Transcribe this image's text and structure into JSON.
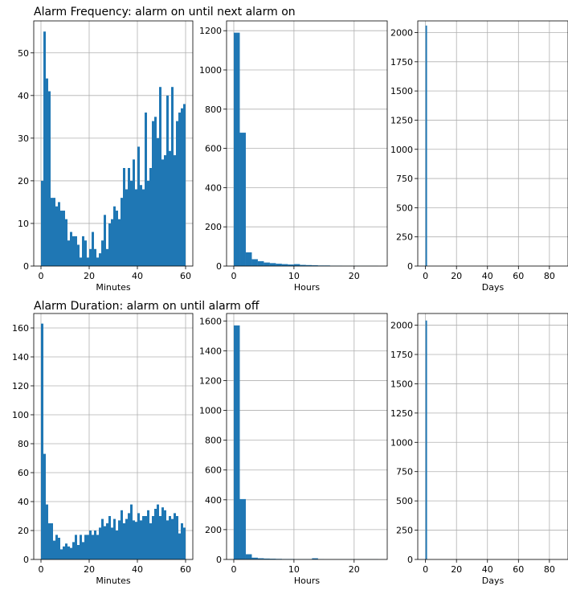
{
  "figure": {
    "rows": [
      {
        "title": "Alarm Frequency: alarm on until next alarm on"
      },
      {
        "title": "Alarm Duration: alarm on until alarm off"
      }
    ],
    "bar_color": "#1f77b4",
    "grid_color": "#b0b0b0"
  },
  "chart_data": [
    {
      "type": "bar",
      "panel": "frequency-minutes",
      "xlabel": "Minutes",
      "ylabel": "",
      "xlim": [
        -3,
        63
      ],
      "ylim": [
        0,
        57.5
      ],
      "xticks": [
        0,
        20,
        40,
        60
      ],
      "yticks": [
        0,
        10,
        20,
        30,
        40,
        50
      ],
      "grid": true,
      "bin_start": 0,
      "bin_width": 1,
      "values": [
        20,
        55,
        44,
        41,
        16,
        16,
        14,
        15,
        13,
        13,
        11,
        6,
        8,
        7,
        7,
        5,
        2,
        7,
        6,
        2,
        4,
        8,
        4,
        2,
        3,
        6,
        12,
        4,
        10,
        11,
        14,
        13,
        11,
        16,
        23,
        18,
        23,
        20,
        25,
        18,
        28,
        19,
        18,
        36,
        20,
        23,
        34,
        35,
        30,
        42,
        25,
        26,
        40,
        27,
        42,
        26,
        34,
        36,
        37,
        38
      ]
    },
    {
      "type": "bar",
      "panel": "frequency-hours",
      "xlabel": "Hours",
      "ylabel": "",
      "xlim": [
        -1.2,
        25.5
      ],
      "ylim": [
        0,
        1250
      ],
      "xticks": [
        0,
        10,
        20
      ],
      "yticks": [
        0,
        200,
        400,
        600,
        800,
        1000,
        1200
      ],
      "grid": true,
      "bin_start": 0,
      "bin_width": 1,
      "values": [
        1190,
        680,
        70,
        35,
        25,
        18,
        15,
        12,
        10,
        8,
        10,
        6,
        5,
        4,
        3,
        3,
        2,
        2,
        1,
        1,
        1,
        1,
        1,
        1
      ]
    },
    {
      "type": "bar",
      "panel": "frequency-days",
      "xlabel": "Days",
      "ylabel": "",
      "xlim": [
        -5,
        92
      ],
      "ylim": [
        0,
        2100
      ],
      "xticks": [
        0,
        20,
        40,
        60,
        80
      ],
      "yticks": [
        0,
        250,
        500,
        750,
        1000,
        1250,
        1500,
        1750,
        2000
      ],
      "grid": true,
      "bin_start": 0,
      "bin_width": 1,
      "values": [
        2060
      ]
    },
    {
      "type": "bar",
      "panel": "duration-minutes",
      "xlabel": "Minutes",
      "ylabel": "",
      "xlim": [
        -3,
        63
      ],
      "ylim": [
        0,
        170
      ],
      "xticks": [
        0,
        20,
        40,
        60
      ],
      "yticks": [
        0,
        20,
        40,
        60,
        80,
        100,
        120,
        140,
        160
      ],
      "grid": true,
      "bin_start": 0,
      "bin_width": 1,
      "values": [
        163,
        73,
        38,
        25,
        25,
        13,
        17,
        15,
        7,
        9,
        11,
        9,
        8,
        12,
        17,
        10,
        17,
        12,
        17,
        17,
        20,
        17,
        20,
        17,
        22,
        28,
        23,
        25,
        30,
        22,
        28,
        20,
        27,
        34,
        25,
        28,
        32,
        38,
        27,
        26,
        32,
        27,
        30,
        30,
        34,
        25,
        30,
        35,
        38,
        30,
        36,
        34,
        27,
        30,
        28,
        32,
        30,
        18,
        25,
        22
      ]
    },
    {
      "type": "bar",
      "panel": "duration-hours",
      "xlabel": "Hours",
      "ylabel": "",
      "xlim": [
        -1.2,
        25.5
      ],
      "ylim": [
        0,
        1650
      ],
      "xticks": [
        0,
        10,
        20
      ],
      "yticks": [
        0,
        200,
        400,
        600,
        800,
        1000,
        1200,
        1400,
        1600
      ],
      "grid": true,
      "bin_start": 0,
      "bin_width": 1,
      "values": [
        1570,
        405,
        35,
        12,
        8,
        6,
        5,
        4,
        3,
        3,
        2,
        2,
        2,
        8,
        2,
        1,
        1,
        1,
        1,
        1,
        1,
        1,
        1,
        1
      ]
    },
    {
      "type": "bar",
      "panel": "duration-days",
      "xlabel": "Days",
      "ylabel": "",
      "xlim": [
        -5,
        92
      ],
      "ylim": [
        0,
        2100
      ],
      "xticks": [
        0,
        20,
        40,
        60,
        80
      ],
      "yticks": [
        0,
        250,
        500,
        750,
        1000,
        1250,
        1500,
        1750,
        2000
      ],
      "grid": true,
      "bin_start": 0,
      "bin_width": 1,
      "values": [
        2040
      ]
    }
  ]
}
